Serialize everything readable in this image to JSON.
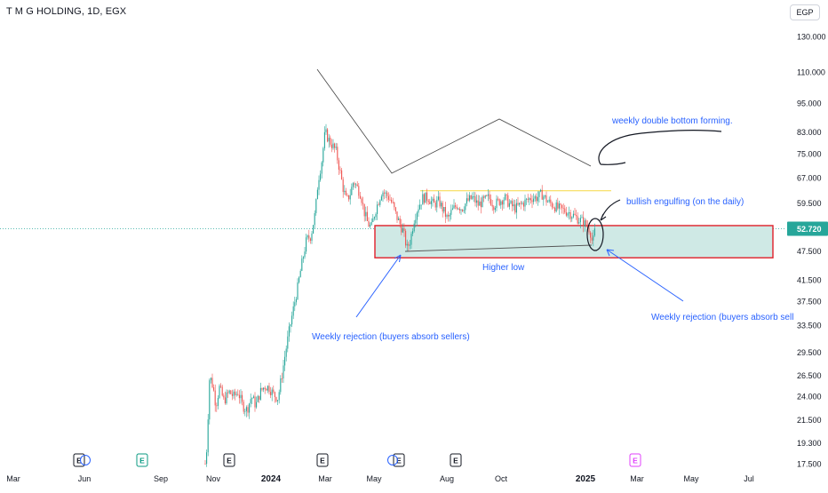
{
  "header": {
    "symbol_title": "T M G HOLDING, 1D, EGX",
    "currency_label": "EGP"
  },
  "chart_data": {
    "type": "candlestick",
    "price_axis": {
      "ticks": [
        "130.000",
        "110.000",
        "95.000",
        "83.000",
        "75.000",
        "67.000",
        "59.500",
        "52.720",
        "47.500",
        "41.500",
        "37.500",
        "33.500",
        "29.500",
        "26.500",
        "24.000",
        "21.500",
        "19.300",
        "17.500"
      ],
      "current_price": "52.720",
      "scale": "log"
    },
    "time_axis": {
      "labels": [
        "Mar",
        "Jun",
        "Sep",
        "Nov",
        "2024",
        "Mar",
        "May",
        "Aug",
        "Oct",
        "2025",
        "Mar",
        "May",
        "Jul"
      ]
    },
    "support_zone": {
      "low": 46.0,
      "high": 53.5
    },
    "resistance_level": 63.0,
    "earnings_markers": [
      {
        "label": "E",
        "type": "past",
        "color": "#131722"
      },
      {
        "label": "E",
        "type": "dividend",
        "color": "#089981"
      },
      {
        "label": "E",
        "type": "past",
        "color": "#131722"
      },
      {
        "label": "E",
        "type": "past",
        "color": "#131722"
      },
      {
        "label": "E",
        "type": "past",
        "color": "#131722"
      },
      {
        "label": "E",
        "type": "past",
        "color": "#131722"
      },
      {
        "label": "E",
        "type": "future",
        "color": "#e040fb"
      }
    ],
    "annotations": {
      "double_bottom": "weekly double bottom forming.",
      "engulfing": "bullish engulfing (on the daily)",
      "higher_low": "Higher low",
      "rejection_left": "Weekly rejection (buyers absorb sellers)",
      "rejection_right": "Weekly rejection (buyers absorb sell"
    },
    "colors": {
      "up": "#26a69a",
      "down": "#ef5350",
      "zone_fill": "#cfe9e5",
      "zone_border": "#e0202a",
      "annotation_text": "#2962ff",
      "resistance_line": "#f5d742",
      "price_badge": "#26a69a"
    }
  }
}
